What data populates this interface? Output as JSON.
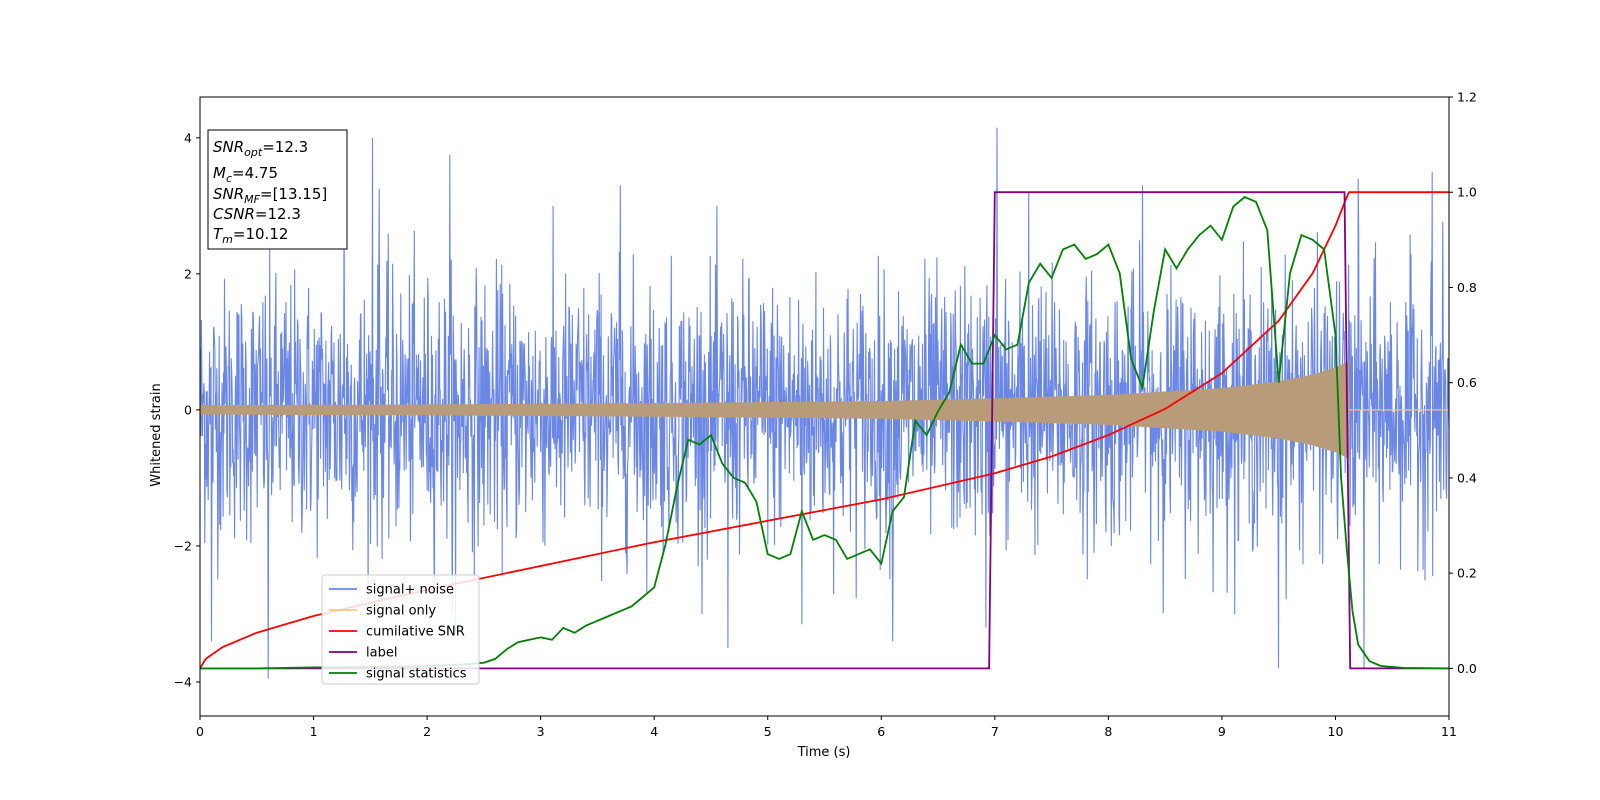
{
  "chart_data": {
    "type": "line",
    "title": "",
    "xlabel": "Time (s)",
    "ylabel": "Whitened strain",
    "xlim": [
      0,
      11
    ],
    "ylim": [
      -4.5,
      4.6
    ],
    "ylim_right": [
      -0.1,
      1.2
    ],
    "xticks": [
      "0",
      "1",
      "2",
      "3",
      "4",
      "5",
      "6",
      "7",
      "8",
      "9",
      "10",
      "11"
    ],
    "yticks_left": [
      "−4",
      "−2",
      "0",
      "2",
      "4"
    ],
    "yticks_right": [
      "0.0",
      "0.2",
      "0.4",
      "0.6",
      "0.8",
      "1.0",
      "1.2"
    ],
    "grid": false,
    "legend": {
      "placement": "lower-left",
      "entries": [
        {
          "name": "signal+ noise",
          "color": "#6a87e6"
        },
        {
          "name": "signal only",
          "color": "#f5c77e"
        },
        {
          "name": "cumilative SNR",
          "color": "#ff0000"
        },
        {
          "name": "label",
          "color": "#800080"
        },
        {
          "name": "signal statistics",
          "color": "#008000"
        }
      ]
    },
    "stats_box": [
      {
        "name": "SNR",
        "sub": "opt",
        "value": "=12.3"
      },
      {
        "name": "M",
        "sub": "c",
        "value": "=4.75"
      },
      {
        "name": "SNR",
        "sub": "MF",
        "value": "=[13.15]"
      },
      {
        "name": "CSNR",
        "sub": "",
        "value": "=12.3"
      },
      {
        "name": "T",
        "sub": "m",
        "value": "=10.12"
      }
    ],
    "series": [
      {
        "name": "signal+ noise",
        "axis": "left",
        "color": "#6a87e6",
        "description_type": "noise",
        "sigma": 0.95,
        "spikes": [
          [
            0.1,
            -3.4
          ],
          [
            0.6,
            -3.95
          ],
          [
            1.27,
            3.2
          ],
          [
            1.52,
            4.0
          ],
          [
            1.58,
            3.25
          ],
          [
            2.2,
            3.75
          ],
          [
            2.25,
            -3.3
          ],
          [
            3.7,
            3.3
          ],
          [
            4.65,
            -3.5
          ],
          [
            5.3,
            -3.15
          ],
          [
            6.1,
            -3.4
          ],
          [
            6.92,
            -3.2
          ],
          [
            7.02,
            4.15
          ],
          [
            7.3,
            3.2
          ],
          [
            8.3,
            3.3
          ],
          [
            9.5,
            -3.8
          ],
          [
            10.2,
            3.4
          ],
          [
            10.25,
            -3.8
          ],
          [
            10.85,
            3.5
          ]
        ]
      },
      {
        "name": "signal only",
        "axis": "left",
        "color": "#f5c77e",
        "envelope": [
          [
            0,
            0.07
          ],
          [
            2,
            0.08
          ],
          [
            4,
            0.1
          ],
          [
            6,
            0.13
          ],
          [
            7,
            0.17
          ],
          [
            8,
            0.22
          ],
          [
            9,
            0.32
          ],
          [
            9.5,
            0.42
          ],
          [
            9.8,
            0.52
          ],
          [
            10.0,
            0.62
          ],
          [
            10.12,
            0.72
          ]
        ],
        "end": 10.12
      },
      {
        "name": "cumilative SNR",
        "axis": "right",
        "color": "#ff0000",
        "x": [
          0,
          0.05,
          0.2,
          0.5,
          1,
          2,
          3,
          4,
          5,
          6,
          7,
          7.5,
          8,
          8.5,
          9,
          9.5,
          9.8,
          10.0,
          10.1,
          10.12,
          11
        ],
        "y": [
          0.0,
          0.02,
          0.045,
          0.075,
          0.11,
          0.165,
          0.215,
          0.265,
          0.31,
          0.355,
          0.41,
          0.445,
          0.49,
          0.545,
          0.62,
          0.73,
          0.83,
          0.93,
          0.99,
          1.0,
          1.0
        ]
      },
      {
        "name": "label",
        "axis": "right",
        "color": "#800080",
        "x": [
          0,
          6.95,
          7.0,
          10.08,
          10.13,
          11
        ],
        "y": [
          0,
          0,
          1,
          1,
          0,
          0
        ]
      },
      {
        "name": "signal statistics",
        "axis": "right",
        "color": "#008000",
        "x": [
          0,
          0.5,
          1,
          1.5,
          2,
          2.3,
          2.5,
          2.6,
          2.7,
          2.8,
          2.9,
          3.0,
          3.1,
          3.2,
          3.3,
          3.4,
          3.5,
          3.6,
          3.7,
          3.8,
          3.9,
          4.0,
          4.1,
          4.2,
          4.3,
          4.4,
          4.5,
          4.6,
          4.7,
          4.8,
          4.9,
          5.0,
          5.1,
          5.2,
          5.3,
          5.4,
          5.5,
          5.6,
          5.7,
          5.8,
          5.9,
          6.0,
          6.1,
          6.2,
          6.3,
          6.4,
          6.5,
          6.6,
          6.7,
          6.8,
          6.9,
          7.0,
          7.1,
          7.2,
          7.3,
          7.4,
          7.5,
          7.6,
          7.7,
          7.8,
          7.9,
          8.0,
          8.1,
          8.2,
          8.3,
          8.4,
          8.5,
          8.6,
          8.7,
          8.8,
          8.9,
          9.0,
          9.1,
          9.2,
          9.3,
          9.4,
          9.5,
          9.6,
          9.7,
          9.8,
          9.9,
          10.0,
          10.05,
          10.1,
          10.15,
          10.2,
          10.3,
          10.4,
          10.6,
          11
        ],
        "y": [
          0.0,
          0.0,
          0.002,
          0.003,
          0.005,
          0.008,
          0.012,
          0.02,
          0.04,
          0.055,
          0.06,
          0.065,
          0.06,
          0.085,
          0.075,
          0.09,
          0.1,
          0.11,
          0.12,
          0.13,
          0.15,
          0.17,
          0.26,
          0.38,
          0.48,
          0.47,
          0.49,
          0.43,
          0.4,
          0.39,
          0.35,
          0.24,
          0.23,
          0.24,
          0.33,
          0.27,
          0.28,
          0.27,
          0.23,
          0.24,
          0.25,
          0.22,
          0.33,
          0.36,
          0.52,
          0.49,
          0.54,
          0.58,
          0.68,
          0.64,
          0.64,
          0.7,
          0.67,
          0.68,
          0.81,
          0.85,
          0.82,
          0.88,
          0.89,
          0.86,
          0.87,
          0.89,
          0.83,
          0.65,
          0.59,
          0.75,
          0.88,
          0.84,
          0.88,
          0.91,
          0.93,
          0.9,
          0.97,
          0.99,
          0.98,
          0.92,
          0.6,
          0.83,
          0.91,
          0.9,
          0.88,
          0.7,
          0.4,
          0.25,
          0.12,
          0.05,
          0.015,
          0.005,
          0.001,
          0.0
        ]
      }
    ]
  }
}
